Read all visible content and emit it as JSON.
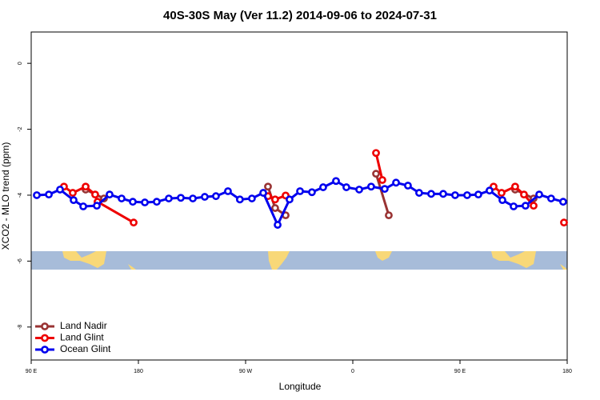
{
  "chart_data": {
    "type": "line",
    "title": "40S-30S May (Ver 11.2)   2014-09-06 to 2024-07-31",
    "x_label": "Longitude",
    "y_label": "XCO2 - MLO trend (ppm)",
    "xlim": [
      90,
      540
    ],
    "ylim": [
      -9,
      0.95
    ],
    "xticks": [
      {
        "value": 90,
        "label": "90 E"
      },
      180,
      {
        "value": 270,
        "label": "90 W"
      },
      {
        "value": 360,
        "label": "0"
      },
      {
        "value": 450,
        "label": "90 E"
      },
      {
        "value": 540,
        "label": "180"
      }
    ],
    "yticks": [
      0,
      -2,
      -4,
      -6,
      -8
    ],
    "legend": "bottom-left",
    "series": [
      {
        "name": "Land Nadir",
        "color": "#993333",
        "x": [
          135.7,
          151.1,
          null,
          288.8,
          294.8,
          303.6,
          null,
          379.5,
          390.2,
          null,
          496.3,
          511.8
        ],
        "values": [
          -3.83,
          -4.1,
          null,
          -3.74,
          -4.39,
          -4.61,
          null,
          -3.35,
          -4.61,
          null,
          -3.83,
          -4.1
        ]
      },
      {
        "name": "Land Glint",
        "color": "#ee0000",
        "x": [
          117.5,
          124.9,
          135.7,
          143.7,
          145.7,
          176.0,
          null,
          288.8,
          294.8,
          303.6,
          null,
          379.5,
          384.8,
          null,
          478.2,
          484.9,
          496.3,
          503.7,
          511.8,
          null,
          537.3
        ],
        "values": [
          -3.74,
          -3.93,
          -3.74,
          -3.98,
          -4.2,
          -4.83,
          null,
          -4.03,
          -4.13,
          -4.01,
          null,
          -2.72,
          -3.54,
          null,
          -3.74,
          -3.93,
          -3.74,
          -3.98,
          -4.32,
          null,
          -4.83
        ]
      },
      {
        "name": "Ocean Glint",
        "color": "#0000ee",
        "x": [
          94.7,
          104.8,
          114.2,
          125.6,
          133.7,
          145.1,
          155.8,
          165.9,
          175.3,
          185.4,
          195.4,
          205.5,
          215.6,
          225.7,
          235.7,
          245.1,
          255.2,
          265.2,
          275.3,
          284.8,
          296.9,
          306.9,
          315.7,
          325.7,
          335.1,
          345.9,
          354.6,
          365.4,
          375.4,
          386.8,
          396.3,
          406.3,
          415.7,
          425.8,
          435.9,
          445.9,
          456.0,
          465.4,
          474.8,
          485.6,
          495.0,
          505.0,
          516.5,
          526.5,
          536.6
        ],
        "values": [
          -4.0,
          -3.98,
          -3.83,
          -4.15,
          -4.34,
          -4.32,
          -3.98,
          -4.1,
          -4.2,
          -4.22,
          -4.2,
          -4.1,
          -4.08,
          -4.1,
          -4.05,
          -4.03,
          -3.88,
          -4.13,
          -4.1,
          -3.93,
          -4.9,
          -4.13,
          -3.88,
          -3.91,
          -3.76,
          -3.57,
          -3.76,
          -3.83,
          -3.74,
          -3.81,
          -3.62,
          -3.71,
          -3.93,
          -3.96,
          -3.96,
          -4.0,
          -4.0,
          -3.98,
          -3.86,
          -4.15,
          -4.34,
          -4.32,
          -3.98,
          -4.1,
          -4.2
        ]
      }
    ]
  }
}
